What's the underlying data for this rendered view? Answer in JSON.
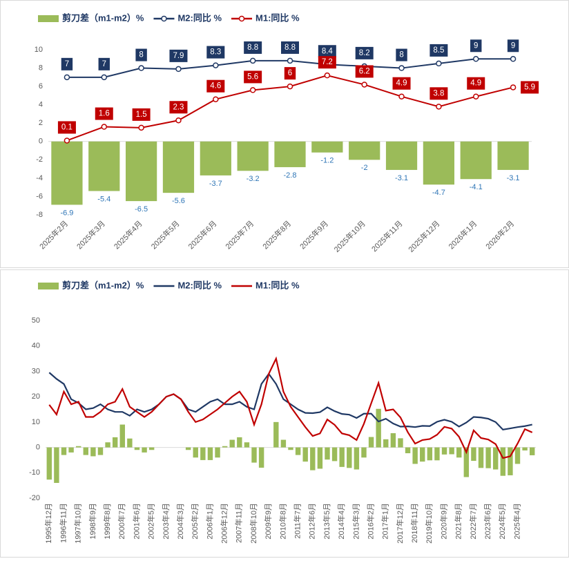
{
  "chart_data": [
    {
      "type": "combo",
      "data_labels": true,
      "grid": false,
      "legend": "top",
      "categories": [
        "2025年2月",
        "2025年3月",
        "2025年4月",
        "2025年5月",
        "2025年6月",
        "2025年7月",
        "2025年8月",
        "2025年9月",
        "2025年10月",
        "2025年11月",
        "2025年12月",
        "2026年1月",
        "2026年2月"
      ],
      "series": [
        {
          "name": "剪刀差（m1-m2）%",
          "type": "bar",
          "color": "#9bbb59",
          "values": [
            -6.9,
            -5.4,
            -6.5,
            -5.6,
            -3.7,
            -3.2,
            -2.8,
            -1.2,
            -2,
            -3.1,
            -4.7,
            -4.1,
            -3.1
          ]
        },
        {
          "name": "M2:同比 %",
          "type": "line",
          "color": "#1f3864",
          "values": [
            7,
            7,
            8,
            7.9,
            8.3,
            8.8,
            8.8,
            8.4,
            8.2,
            8,
            8.5,
            9,
            9
          ]
        },
        {
          "name": "M1:同比 %",
          "type": "line",
          "color": "#c00000",
          "values": [
            0.1,
            1.6,
            1.5,
            2.3,
            4.6,
            5.6,
            6,
            7.2,
            6.2,
            4.9,
            3.8,
            4.9,
            5.9
          ]
        }
      ],
      "ylim": [
        -8,
        10
      ],
      "yticks": [
        -8,
        -6,
        -4,
        -2,
        0,
        2,
        4,
        6,
        8,
        10
      ]
    },
    {
      "type": "combo",
      "data_labels": false,
      "grid": false,
      "legend": "top",
      "categories": [
        "1995年12月",
        null,
        "1996年11月",
        null,
        "1997年10月",
        null,
        "1998年9月",
        null,
        "1999年8月",
        null,
        "2000年7月",
        null,
        "2001年6月",
        null,
        "2002年5月",
        null,
        "2003年4月",
        null,
        "2004年3月",
        null,
        "2005年2月",
        null,
        "2006年1月",
        null,
        "2006年12月",
        null,
        "2007年11月",
        null,
        "2008年10月",
        null,
        "2009年9月",
        null,
        "2010年8月",
        null,
        "2011年7月",
        null,
        "2012年6月",
        null,
        "2013年5月",
        null,
        "2014年4月",
        null,
        "2015年3月",
        null,
        "2016年2月",
        null,
        "2017年1月",
        null,
        "2017年12月",
        null,
        "2018年11月",
        null,
        "2019年10月",
        null,
        "2020年9月",
        null,
        "2021年8月",
        null,
        "2022年7月",
        null,
        "2023年6月",
        null,
        "2024年5月",
        null,
        "2025年4月",
        null,
        null
      ],
      "series": [
        {
          "name": "剪刀差（m1-m2）%",
          "type": "bar",
          "color": "#9bbb59",
          "values": [
            -12.7,
            -14,
            -3,
            -2,
            0.5,
            -3,
            -3.5,
            -3,
            2,
            4,
            9,
            3.5,
            -1,
            -2,
            -1,
            0,
            0,
            0,
            0,
            -1,
            -4,
            -5,
            -5,
            -4,
            0.5,
            3,
            4,
            2,
            -6,
            -8,
            0,
            10,
            3,
            -1,
            -3,
            -5.6,
            -9,
            -8.4,
            -4.8,
            -5.4,
            -7.7,
            -8.1,
            -8.7,
            -4,
            4.1,
            15.2,
            3.2,
            5.6,
            3.6,
            -2.3,
            -6.5,
            -5.6,
            -5.1,
            -5.1,
            -2.8,
            -2.7,
            -4,
            -11.7,
            -5.3,
            -8.1,
            -8.2,
            -8.7,
            -11.2,
            -11,
            -6.5,
            -1.2,
            -3.1
          ]
        },
        {
          "name": "M2:同比 %",
          "type": "line",
          "color": "#1f3864",
          "values": [
            29.5,
            27,
            25,
            19,
            17.5,
            15,
            15.5,
            17,
            15,
            14,
            14,
            12.5,
            15,
            14,
            15,
            17,
            20,
            21,
            19,
            15,
            14,
            16,
            18,
            19,
            17,
            17,
            18,
            16,
            15,
            25,
            29,
            25,
            19,
            17,
            15,
            13.6,
            13.5,
            13.9,
            15.8,
            14.3,
            13.2,
            12.9,
            11.6,
            13.3,
            13.3,
            10.2,
            11.3,
            9.4,
            8.2,
            8.3,
            8,
            8.5,
            8.4,
            10.1,
            10.9,
            10.1,
            8.2,
            9.8,
            12,
            11.8,
            11.3,
            10,
            7,
            7.5,
            8,
            8.4,
            9
          ]
        },
        {
          "name": "M1:同比 %",
          "type": "line",
          "color": "#c00000",
          "values": [
            16.8,
            13,
            22,
            17,
            18,
            12,
            12,
            14,
            17,
            18,
            23,
            16,
            14,
            12,
            14,
            17,
            20,
            21,
            19,
            14,
            10,
            11,
            13,
            15,
            17.5,
            20,
            22,
            18,
            9,
            17,
            29,
            35,
            22,
            16,
            12,
            8,
            4.5,
            5.5,
            11,
            8.9,
            5.5,
            4.8,
            2.9,
            9.3,
            17.4,
            25.4,
            14.5,
            15,
            11.8,
            6,
            1.5,
            2.9,
            3.3,
            5,
            8.1,
            7.4,
            4.2,
            -1.9,
            6.7,
            3.7,
            3.1,
            1.3,
            -4.2,
            -3.5,
            1.5,
            7.2,
            5.9
          ]
        }
      ],
      "ylim": [
        -20,
        50
      ],
      "yticks": [
        -20,
        -10,
        0,
        10,
        20,
        30,
        40,
        50
      ]
    }
  ]
}
